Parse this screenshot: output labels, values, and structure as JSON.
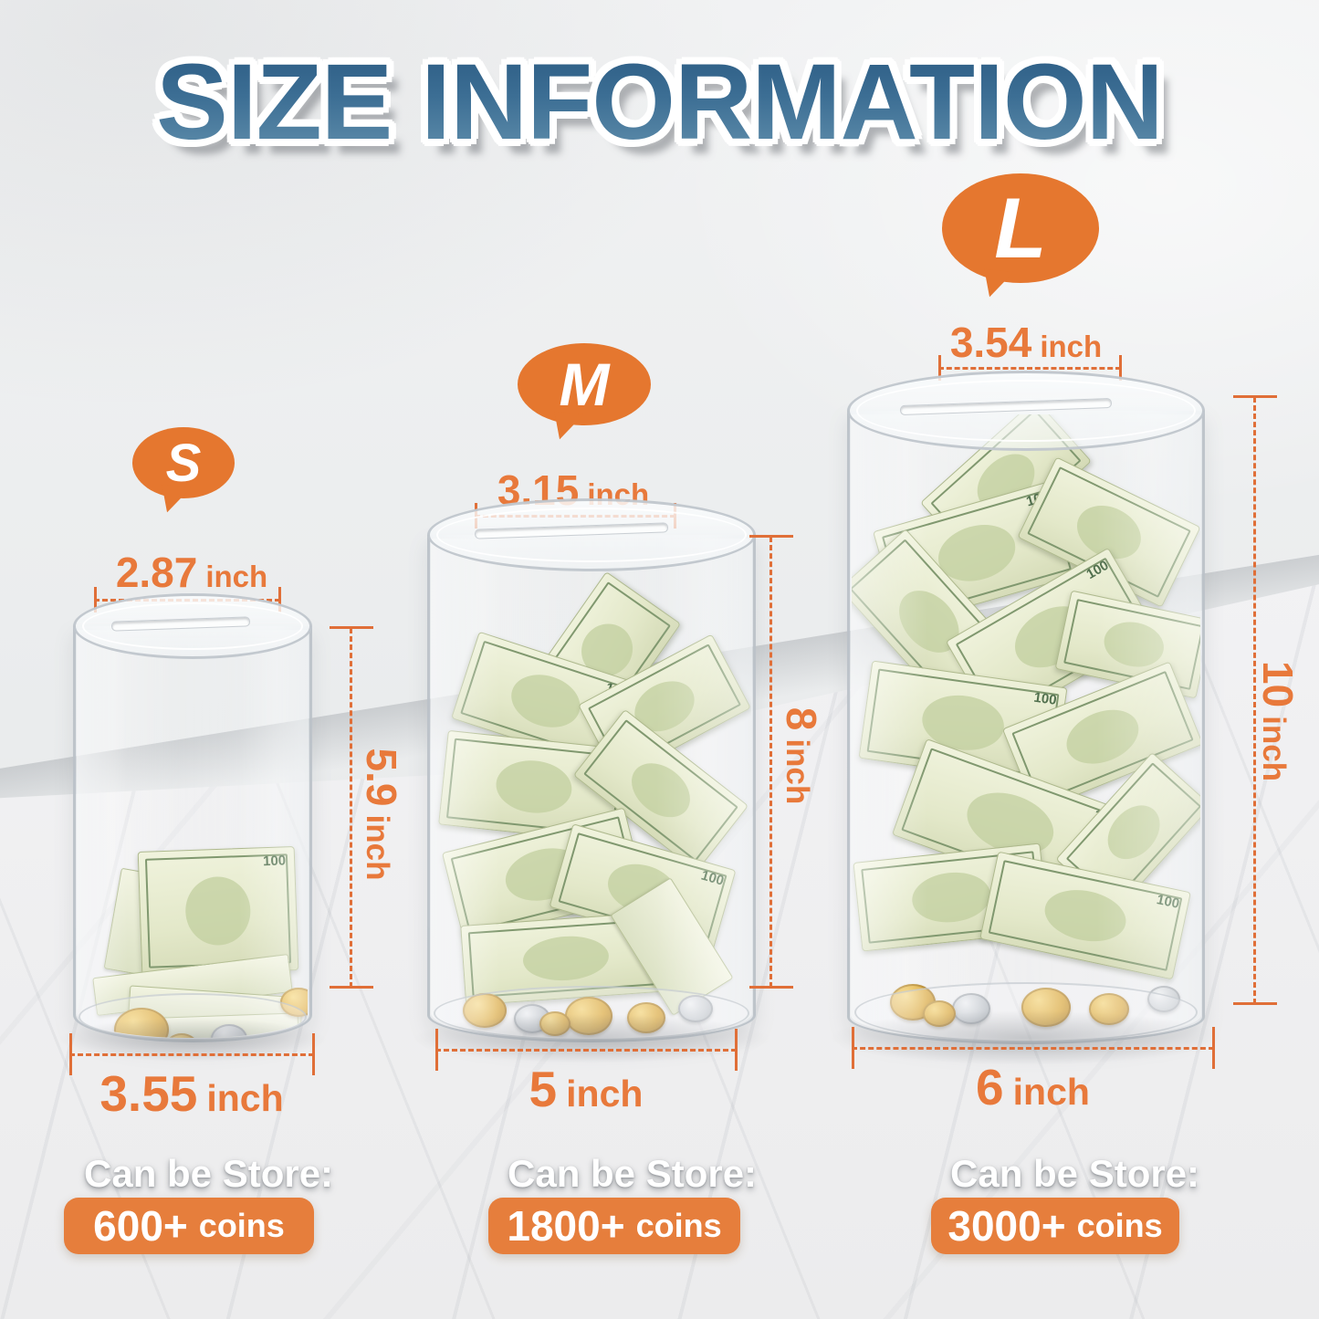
{
  "title": "SIZE INFORMATION",
  "store_label": "Can be Store:",
  "bill_label": "100",
  "colors": {
    "accent_orange": "#E8793B",
    "badge_orange": "#E5772F",
    "button_orange": "#E67E3C",
    "title_blue_top": "#2A5A82",
    "title_blue_bottom": "#6391AE"
  },
  "sizes": [
    {
      "badge": "S",
      "top_width": "2.87",
      "top_unit": "inch",
      "height": "5.9",
      "height_unit": "inch",
      "bottom_width": "3.55",
      "bottom_unit": "inch",
      "capacity": "600+",
      "capacity_unit": "coins"
    },
    {
      "badge": "M",
      "top_width": "3.15",
      "top_unit": "inch",
      "height": "8",
      "height_unit": "inch",
      "bottom_width": "5",
      "bottom_unit": "inch",
      "capacity": "1800+",
      "capacity_unit": "coins"
    },
    {
      "badge": "L",
      "top_width": "3.54",
      "top_unit": "inch",
      "height": "10",
      "height_unit": "inch",
      "bottom_width": "6",
      "bottom_unit": "inch",
      "capacity": "3000+",
      "capacity_unit": "coins"
    }
  ]
}
